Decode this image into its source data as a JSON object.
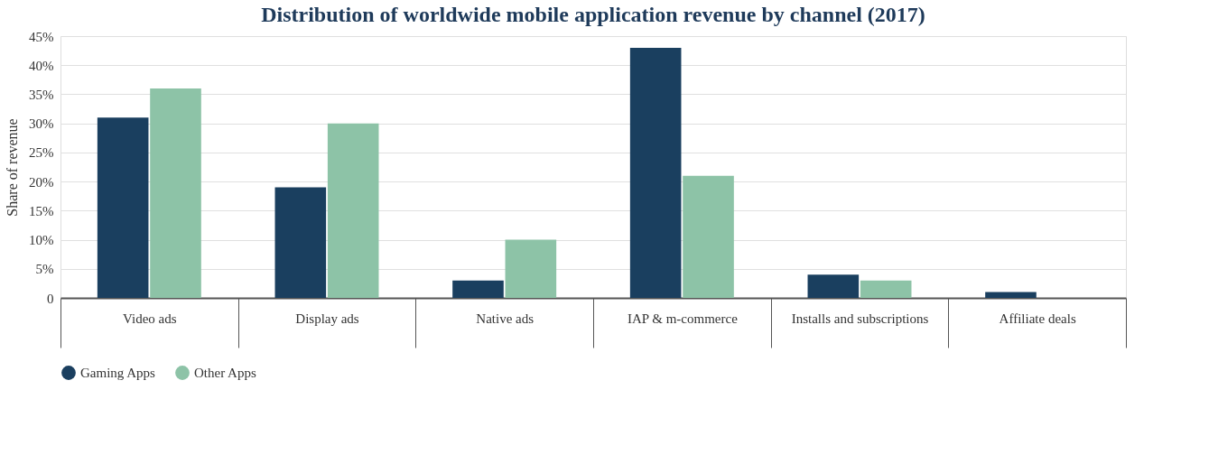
{
  "chart_data": {
    "type": "bar",
    "title": "Distribution of worldwide mobile application revenue by channel (2017)",
    "ylabel": "Share of revenue",
    "categories": [
      "Video ads",
      "Display ads",
      "Native ads",
      "IAP & m-commerce",
      "Installs and subscriptions",
      "Affiliate deals"
    ],
    "series": [
      {
        "name": "Gaming Apps",
        "color": "#1a3f5f",
        "values": [
          31,
          19,
          3,
          43,
          4,
          1
        ]
      },
      {
        "name": "Other Apps",
        "color": "#8dc3a7",
        "values": [
          36,
          30,
          10,
          21,
          3,
          null
        ]
      }
    ],
    "ylim": [
      0,
      45
    ],
    "yticks": [
      {
        "value": 0,
        "label": "0"
      },
      {
        "value": 5,
        "label": "5%"
      },
      {
        "value": 10,
        "label": "10%"
      },
      {
        "value": 15,
        "label": "15%"
      },
      {
        "value": 20,
        "label": "20%"
      },
      {
        "value": 25,
        "label": "25%"
      },
      {
        "value": 30,
        "label": "30%"
      },
      {
        "value": 35,
        "label": "35%"
      },
      {
        "value": 40,
        "label": "40%"
      },
      {
        "value": 45,
        "label": "45%"
      }
    ],
    "grid": "y",
    "legend": "bottom"
  }
}
